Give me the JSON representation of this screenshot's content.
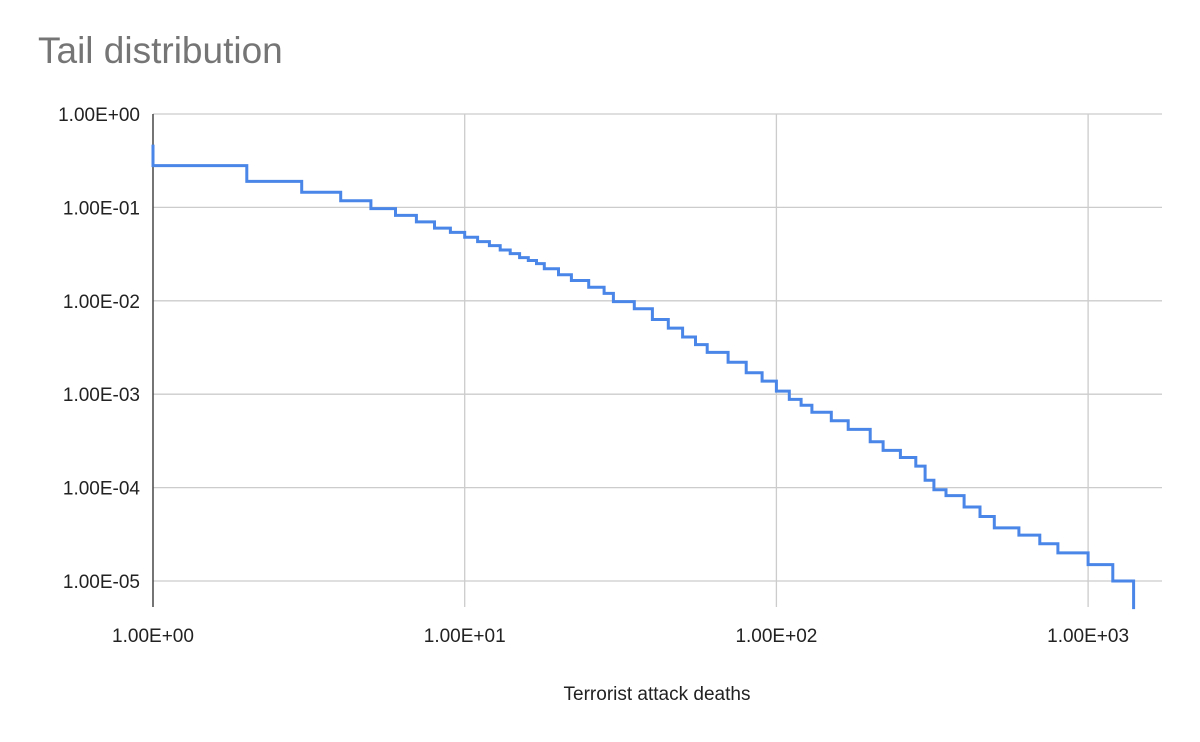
{
  "chart_data": {
    "type": "line",
    "title": "Tail distribution",
    "xlabel": "Terrorist attack deaths",
    "ylabel": "",
    "x_scale": "log",
    "y_scale": "log",
    "xlim": [
      1,
      1400
    ],
    "ylim": [
      5e-06,
      1
    ],
    "grid": true,
    "legend": "none",
    "x_ticks": [
      {
        "value": 1,
        "label": "1.00E+00"
      },
      {
        "value": 10,
        "label": "1.00E+01"
      },
      {
        "value": 100,
        "label": "1.00E+02"
      },
      {
        "value": 1000,
        "label": "1.00E+03"
      }
    ],
    "y_ticks": [
      {
        "value": 1,
        "label": "1.00E+00"
      },
      {
        "value": 0.1,
        "label": "1.00E-01"
      },
      {
        "value": 0.01,
        "label": "1.00E-02"
      },
      {
        "value": 0.001,
        "label": "1.00E-03"
      },
      {
        "value": 0.0001,
        "label": "1.00E-04"
      },
      {
        "value": 1e-05,
        "label": "1.00E-05"
      }
    ],
    "series": [
      {
        "color": "#4a86e8",
        "step": true,
        "x": [
          1,
          2,
          3,
          4,
          5,
          6,
          7,
          8,
          9,
          10,
          11,
          12,
          13,
          14,
          15,
          16,
          17,
          18,
          20,
          22,
          25,
          28,
          30,
          35,
          40,
          45,
          50,
          55,
          60,
          70,
          80,
          90,
          100,
          110,
          120,
          130,
          150,
          170,
          200,
          220,
          250,
          280,
          300,
          320,
          350,
          400,
          450,
          500,
          600,
          700,
          800,
          1000,
          1200,
          1400
        ],
        "y": [
          0.28,
          0.19,
          0.145,
          0.118,
          0.097,
          0.082,
          0.07,
          0.06,
          0.054,
          0.048,
          0.043,
          0.039,
          0.035,
          0.032,
          0.029,
          0.027,
          0.025,
          0.022,
          0.019,
          0.0165,
          0.014,
          0.012,
          0.0098,
          0.0082,
          0.0063,
          0.0051,
          0.0041,
          0.0034,
          0.0028,
          0.0022,
          0.0017,
          0.00138,
          0.00108,
          0.00088,
          0.00076,
          0.00064,
          0.00052,
          0.00042,
          0.00031,
          0.00025,
          0.00021,
          0.00017,
          0.00012,
          9.5e-05,
          8.2e-05,
          6.2e-05,
          4.9e-05,
          3.7e-05,
          3.1e-05,
          2.5e-05,
          2e-05,
          1.5e-05,
          1e-05,
          5e-06
        ]
      }
    ]
  }
}
